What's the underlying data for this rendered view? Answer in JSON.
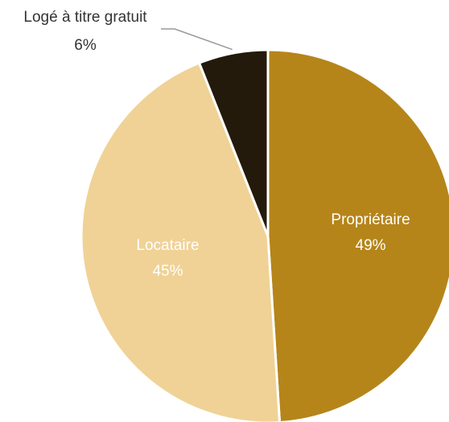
{
  "chart_data": {
    "type": "pie",
    "categories": [
      "Propriétaire",
      "Locataire",
      "Logé à titre gratuit"
    ],
    "values": [
      49,
      45,
      6
    ],
    "value_labels": [
      "49%",
      "45%",
      "6%"
    ],
    "colors": [
      "#b5851a",
      "#f0d296",
      "#231a0c"
    ]
  }
}
